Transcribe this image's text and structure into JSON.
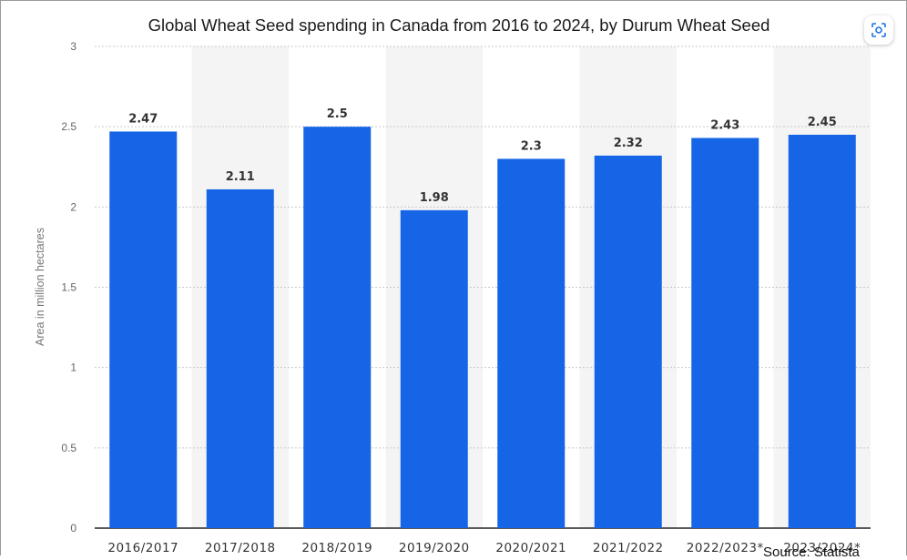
{
  "chart_data": {
    "type": "bar",
    "title": "Global Wheat Seed spending in Canada from 2016 to 2024, by Durum Wheat Seed",
    "ylabel": "Area in million hectares",
    "xlabel": "",
    "categories": [
      "2016/2017",
      "2017/2018",
      "2018/2019",
      "2019/2020",
      "2020/2021",
      "2021/2022",
      "2022/2023*",
      "2023/2024*"
    ],
    "values": [
      2.47,
      2.11,
      2.5,
      1.98,
      2.3,
      2.32,
      2.43,
      2.45
    ],
    "data_labels": [
      "2.47",
      "2.11",
      "2.5",
      "1.98",
      "2.3",
      "2.32",
      "2.43",
      "2.45"
    ],
    "ylim": [
      0,
      3
    ],
    "yticks": [
      "0",
      "0.5",
      "1",
      "1.5",
      "2",
      "2.5",
      "3"
    ],
    "grid": true,
    "bar_color": "#1565e6",
    "band_color": "#f4f4f4"
  },
  "source": "Source: Statista",
  "icons": {
    "lens": "google-lens-icon"
  }
}
